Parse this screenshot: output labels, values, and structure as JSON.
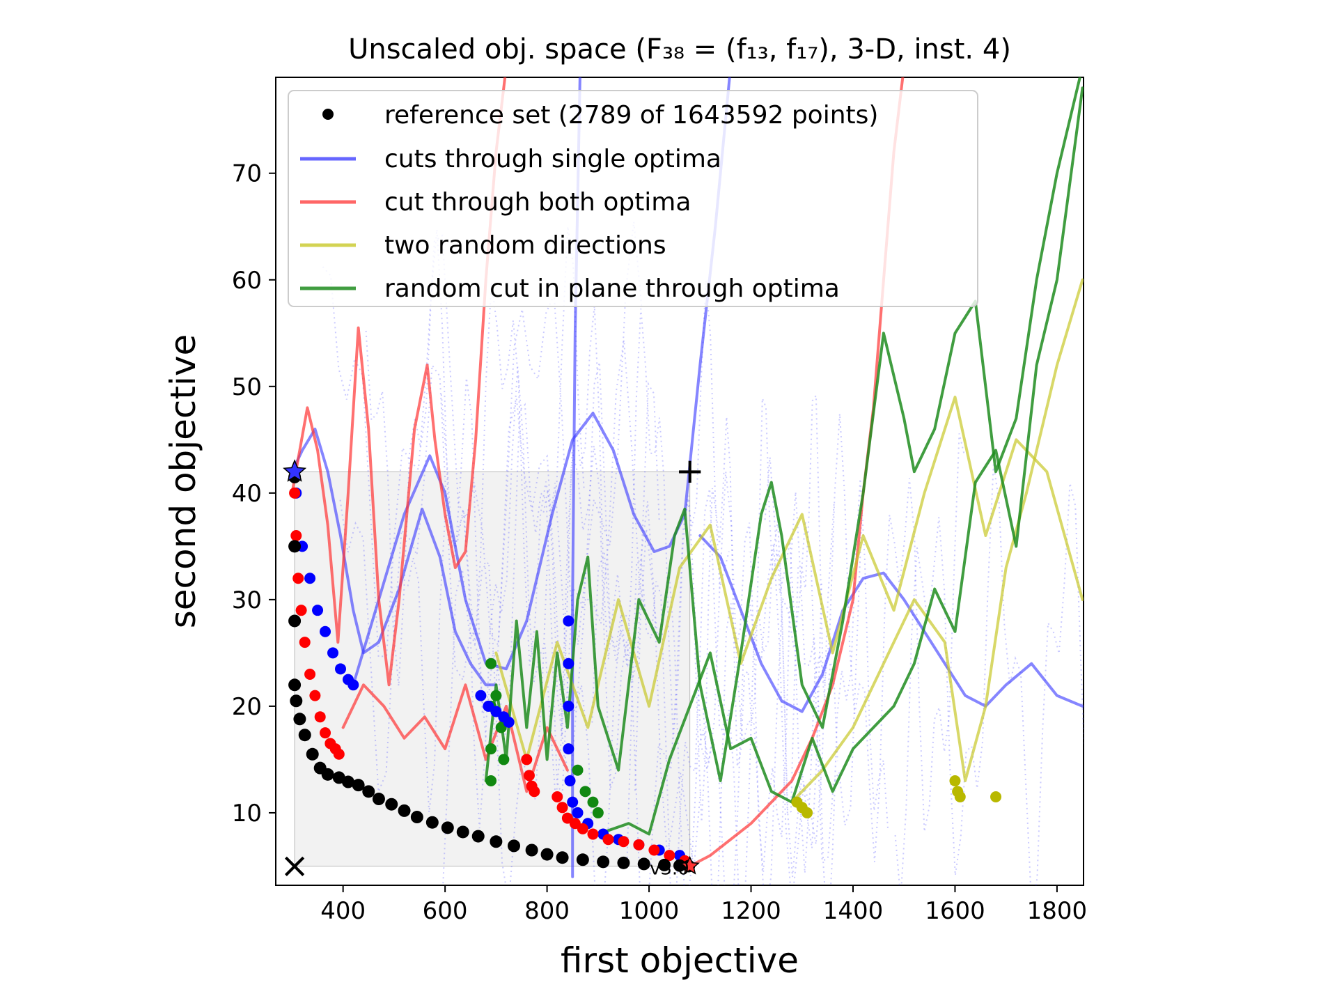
{
  "chart_data": {
    "type": "line",
    "title": "Unscaled obj. space (F₃₈ = (f₁₃, f₁₇), 3-D, inst. 4)",
    "xlabel": "first objective",
    "ylabel": "second objective",
    "xlim": [
      268,
      1852
    ],
    "ylim": [
      3.2,
      79
    ],
    "xticks": [
      400,
      600,
      800,
      1000,
      1200,
      1400,
      1600,
      1800
    ],
    "yticks": [
      10,
      20,
      30,
      40,
      50,
      60,
      70
    ],
    "grid": false,
    "legend_position": "top-left",
    "legend": [
      {
        "label": "reference set (2789 of 1643592 points)",
        "marker": "dot",
        "color": "#000000"
      },
      {
        "label": "cuts through single optima",
        "color": "#3333ff"
      },
      {
        "label": "cut through both optima",
        "color": "#ff3333"
      },
      {
        "label": "two random directions",
        "color": "#c8c828"
      },
      {
        "label": "random cut in plane through optima",
        "color": "#1e8c1e"
      }
    ],
    "annotations": {
      "ideal_marker": {
        "symbol": "×",
        "x": 305,
        "y": 5.0
      },
      "nadir_marker": {
        "symbol": "+",
        "x": 1080,
        "y": 42.0
      },
      "optimum_1": {
        "symbol": "★",
        "x": 305,
        "y": 42.0,
        "color": "#3333ff"
      },
      "optimum_2": {
        "symbol": "★",
        "x": 1080,
        "y": 5.0,
        "color": "#ff3333"
      },
      "reference_label": "v3.0"
    },
    "dominated_box": {
      "x": [
        305,
        1080
      ],
      "y": [
        5.0,
        42.0
      ]
    },
    "reference_set": [
      [
        305,
        41.5
      ],
      [
        305,
        35
      ],
      [
        305,
        28
      ],
      [
        305,
        22
      ],
      [
        308,
        20.5
      ],
      [
        315,
        18.8
      ],
      [
        325,
        17.3
      ],
      [
        340,
        15.5
      ],
      [
        355,
        14.2
      ],
      [
        370,
        13.6
      ],
      [
        392,
        13.3
      ],
      [
        410,
        12.9
      ],
      [
        430,
        12.6
      ],
      [
        450,
        12.0
      ],
      [
        470,
        11.3
      ],
      [
        495,
        10.8
      ],
      [
        520,
        10.2
      ],
      [
        545,
        9.6
      ],
      [
        575,
        9.1
      ],
      [
        605,
        8.6
      ],
      [
        635,
        8.2
      ],
      [
        665,
        7.8
      ],
      [
        700,
        7.3
      ],
      [
        735,
        6.9
      ],
      [
        770,
        6.5
      ],
      [
        800,
        6.1
      ],
      [
        830,
        5.8
      ],
      [
        870,
        5.6
      ],
      [
        910,
        5.4
      ],
      [
        950,
        5.3
      ],
      [
        990,
        5.2
      ],
      [
        1030,
        5.1
      ],
      [
        1060,
        5.05
      ],
      [
        1078,
        5.0
      ]
    ],
    "series": [
      {
        "color": "#3333ff",
        "opacity": 0.6,
        "width": 4,
        "points": [
          [
            300,
            42
          ],
          [
            320,
            44
          ],
          [
            345,
            46
          ],
          [
            370,
            42
          ],
          [
            395,
            36
          ],
          [
            420,
            29
          ],
          [
            440,
            25
          ],
          [
            470,
            26
          ],
          [
            510,
            31
          ],
          [
            555,
            38.5
          ],
          [
            590,
            34
          ],
          [
            620,
            27
          ],
          [
            650,
            24
          ],
          [
            680,
            22
          ],
          [
            700,
            22
          ]
        ]
      },
      {
        "color": "#3333ff",
        "opacity": 0.6,
        "width": 4,
        "points": [
          [
            420,
            22
          ],
          [
            470,
            30
          ],
          [
            520,
            38
          ],
          [
            570,
            43.5
          ],
          [
            600,
            40
          ],
          [
            640,
            30
          ],
          [
            680,
            24
          ],
          [
            720,
            23.5
          ],
          [
            760,
            28
          ],
          [
            810,
            38
          ],
          [
            850,
            45
          ],
          [
            890,
            47.5
          ],
          [
            930,
            44
          ],
          [
            970,
            38
          ],
          [
            1010,
            34.5
          ],
          [
            1040,
            35
          ],
          [
            1070,
            38
          ],
          [
            1100,
            52
          ],
          [
            1130,
            65
          ],
          [
            1160,
            80
          ]
        ]
      },
      {
        "color": "#3333ff",
        "opacity": 0.6,
        "width": 4,
        "points": [
          [
            850,
            4
          ],
          [
            850,
            30
          ],
          [
            855,
            55
          ],
          [
            865,
            80
          ]
        ]
      },
      {
        "color": "#3333ff",
        "opacity": 0.6,
        "width": 4,
        "points": [
          [
            1100,
            36
          ],
          [
            1140,
            34
          ],
          [
            1180,
            29
          ],
          [
            1220,
            24
          ],
          [
            1260,
            20.5
          ],
          [
            1300,
            19.5
          ],
          [
            1340,
            23
          ],
          [
            1380,
            29
          ],
          [
            1420,
            32
          ],
          [
            1460,
            32.5
          ],
          [
            1500,
            30
          ],
          [
            1540,
            27
          ],
          [
            1580,
            24
          ],
          [
            1620,
            21
          ],
          [
            1660,
            20
          ],
          [
            1700,
            22
          ],
          [
            1750,
            24
          ],
          [
            1800,
            21
          ],
          [
            1850,
            20
          ]
        ]
      },
      {
        "color": "#ff3333",
        "opacity": 0.7,
        "width": 4,
        "points": [
          [
            300,
            40
          ],
          [
            330,
            48
          ],
          [
            350,
            44
          ],
          [
            370,
            37
          ],
          [
            390,
            26
          ],
          [
            410,
            40
          ],
          [
            430,
            55.5
          ],
          [
            450,
            46
          ],
          [
            470,
            30
          ],
          [
            490,
            22
          ],
          [
            510,
            30
          ],
          [
            540,
            46
          ],
          [
            565,
            52
          ],
          [
            580,
            45
          ],
          [
            600,
            38
          ],
          [
            620,
            33
          ],
          [
            640,
            34.5
          ],
          [
            660,
            45
          ],
          [
            680,
            60
          ],
          [
            700,
            72
          ],
          [
            720,
            80
          ]
        ]
      },
      {
        "color": "#ff3333",
        "opacity": 0.7,
        "width": 4,
        "points": [
          [
            400,
            18
          ],
          [
            440,
            22
          ],
          [
            480,
            20
          ],
          [
            520,
            17
          ],
          [
            560,
            19
          ],
          [
            600,
            16
          ],
          [
            640,
            22
          ],
          [
            680,
            15
          ],
          [
            720,
            20
          ],
          [
            760,
            12
          ],
          [
            800,
            18
          ],
          [
            840,
            14
          ]
        ]
      },
      {
        "color": "#ff3333",
        "opacity": 0.7,
        "width": 4,
        "points": [
          [
            1080,
            5
          ],
          [
            1120,
            6
          ],
          [
            1160,
            7.5
          ],
          [
            1200,
            9
          ],
          [
            1240,
            11
          ],
          [
            1280,
            13
          ],
          [
            1320,
            17
          ],
          [
            1360,
            22
          ],
          [
            1400,
            30
          ],
          [
            1420,
            40
          ],
          [
            1440,
            48
          ],
          [
            1460,
            60
          ],
          [
            1480,
            72
          ],
          [
            1500,
            80
          ]
        ]
      },
      {
        "color": "#c8c828",
        "opacity": 0.7,
        "width": 4,
        "points": [
          [
            700,
            25
          ],
          [
            760,
            15
          ],
          [
            820,
            26
          ],
          [
            880,
            18
          ],
          [
            940,
            30
          ],
          [
            1000,
            20
          ],
          [
            1060,
            33
          ],
          [
            1120,
            37
          ],
          [
            1180,
            24
          ],
          [
            1240,
            32
          ],
          [
            1300,
            38
          ],
          [
            1360,
            25
          ],
          [
            1420,
            36
          ],
          [
            1480,
            29
          ],
          [
            1540,
            40
          ],
          [
            1600,
            49
          ],
          [
            1660,
            36
          ],
          [
            1720,
            45
          ],
          [
            1780,
            42
          ],
          [
            1850,
            30
          ]
        ]
      },
      {
        "color": "#c8c828",
        "opacity": 0.7,
        "width": 4,
        "points": [
          [
            1280,
            11
          ],
          [
            1340,
            14
          ],
          [
            1400,
            18
          ],
          [
            1460,
            24
          ],
          [
            1520,
            30
          ],
          [
            1580,
            26
          ],
          [
            1620,
            13
          ],
          [
            1660,
            20
          ],
          [
            1700,
            33
          ],
          [
            1740,
            40
          ],
          [
            1800,
            52
          ],
          [
            1850,
            60
          ]
        ]
      },
      {
        "color": "#1e8c1e",
        "opacity": 0.85,
        "width": 4,
        "points": [
          [
            680,
            13
          ],
          [
            700,
            22
          ],
          [
            720,
            15
          ],
          [
            740,
            28
          ],
          [
            760,
            18
          ],
          [
            780,
            27
          ],
          [
            800,
            15
          ],
          [
            820,
            25
          ],
          [
            840,
            18
          ],
          [
            860,
            30
          ],
          [
            880,
            34
          ],
          [
            900,
            20
          ],
          [
            940,
            14
          ],
          [
            980,
            30
          ],
          [
            1020,
            26
          ],
          [
            1050,
            36
          ],
          [
            1070,
            38.5
          ],
          [
            1100,
            22
          ],
          [
            1140,
            13
          ],
          [
            1180,
            25
          ],
          [
            1220,
            38
          ],
          [
            1240,
            41
          ],
          [
            1260,
            36
          ],
          [
            1300,
            22
          ],
          [
            1340,
            18
          ],
          [
            1380,
            28
          ],
          [
            1420,
            40
          ],
          [
            1460,
            55
          ],
          [
            1500,
            47
          ],
          [
            1520,
            42
          ],
          [
            1560,
            46
          ],
          [
            1600,
            55
          ],
          [
            1640,
            58
          ],
          [
            1680,
            42
          ],
          [
            1720,
            47
          ],
          [
            1760,
            60
          ],
          [
            1800,
            70
          ],
          [
            1850,
            80
          ]
        ]
      },
      {
        "color": "#1e8c1e",
        "opacity": 0.85,
        "width": 4,
        "points": [
          [
            900,
            8
          ],
          [
            960,
            9
          ],
          [
            1000,
            8
          ],
          [
            1040,
            15
          ],
          [
            1080,
            20
          ],
          [
            1120,
            25
          ],
          [
            1160,
            16
          ],
          [
            1200,
            17
          ],
          [
            1240,
            12
          ],
          [
            1280,
            11
          ],
          [
            1320,
            17
          ],
          [
            1360,
            12
          ],
          [
            1400,
            16
          ],
          [
            1440,
            18
          ],
          [
            1480,
            20
          ],
          [
            1520,
            24
          ],
          [
            1560,
            31
          ],
          [
            1600,
            27
          ],
          [
            1640,
            41
          ],
          [
            1680,
            44
          ],
          [
            1720,
            35
          ],
          [
            1760,
            52
          ],
          [
            1800,
            60
          ],
          [
            1850,
            78
          ]
        ]
      }
    ],
    "blue_dots": [
      [
        308,
        40
      ],
      [
        320,
        35
      ],
      [
        335,
        32
      ],
      [
        350,
        29
      ],
      [
        365,
        27
      ],
      [
        380,
        25
      ],
      [
        395,
        23.5
      ],
      [
        410,
        22.5
      ],
      [
        420,
        22
      ],
      [
        670,
        21
      ],
      [
        685,
        20
      ],
      [
        700,
        19.5
      ],
      [
        715,
        19
      ],
      [
        725,
        18.5
      ],
      [
        842,
        28
      ],
      [
        842,
        24
      ],
      [
        842,
        20
      ],
      [
        842,
        16
      ],
      [
        845,
        13
      ],
      [
        850,
        11
      ],
      [
        860,
        10
      ],
      [
        880,
        9
      ],
      [
        910,
        8
      ],
      [
        940,
        7.5
      ],
      [
        980,
        7
      ],
      [
        1020,
        6.5
      ],
      [
        1060,
        6
      ]
    ],
    "red_dots": [
      [
        305,
        40
      ],
      [
        308,
        36
      ],
      [
        312,
        32
      ],
      [
        318,
        29
      ],
      [
        325,
        26
      ],
      [
        335,
        23
      ],
      [
        345,
        21
      ],
      [
        355,
        19
      ],
      [
        365,
        17.5
      ],
      [
        375,
        16.5
      ],
      [
        385,
        16
      ],
      [
        392,
        15.5
      ],
      [
        760,
        15
      ],
      [
        765,
        13.5
      ],
      [
        770,
        12.5
      ],
      [
        775,
        12
      ],
      [
        820,
        11.5
      ],
      [
        830,
        10.5
      ],
      [
        840,
        9.5
      ],
      [
        855,
        9
      ],
      [
        870,
        8.5
      ],
      [
        890,
        8
      ],
      [
        920,
        7.5
      ],
      [
        950,
        7.3
      ],
      [
        980,
        7
      ],
      [
        1010,
        6.5
      ],
      [
        1040,
        6
      ],
      [
        1070,
        5.5
      ]
    ],
    "green_dots": [
      [
        690,
        24
      ],
      [
        690,
        20
      ],
      [
        690,
        16
      ],
      [
        690,
        13
      ],
      [
        700,
        21
      ],
      [
        710,
        18
      ],
      [
        715,
        15
      ],
      [
        860,
        14
      ],
      [
        875,
        12
      ],
      [
        890,
        11
      ],
      [
        900,
        10
      ]
    ],
    "yellow_dots": [
      [
        1290,
        11
      ],
      [
        1300,
        10.5
      ],
      [
        1310,
        10
      ],
      [
        1600,
        13
      ],
      [
        1605,
        12
      ],
      [
        1610,
        11.5
      ],
      [
        1680,
        11.5
      ]
    ],
    "dotted_background": {
      "color": "#6666ff",
      "opacity": 0.35
    }
  }
}
